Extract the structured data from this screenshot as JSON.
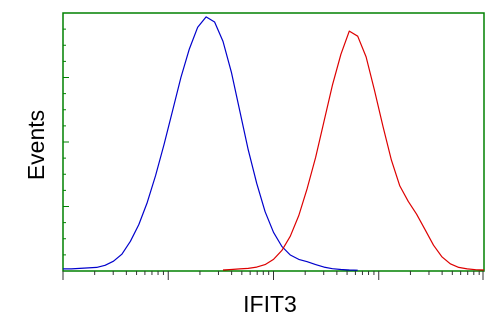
{
  "chart_data": {
    "type": "line",
    "title": "",
    "xlabel": "IFIT3",
    "ylabel": "Events",
    "x_scale": "log",
    "x_tick_labels": [],
    "y_tick_labels": [],
    "xlim": [
      0,
      1000
    ],
    "ylim": [
      0,
      1000
    ],
    "grid": false,
    "legend": "none",
    "frame_color": "#008000",
    "series": [
      {
        "color": "#0000CC",
        "x": [
          0,
          20,
          40,
          60,
          80,
          100,
          120,
          140,
          160,
          180,
          200,
          220,
          240,
          260,
          280,
          300,
          320,
          340,
          360,
          380,
          400,
          420,
          440,
          460,
          480,
          500,
          520,
          540,
          560,
          580,
          600,
          620,
          640,
          660,
          680,
          700
        ],
        "y": [
          8,
          8,
          10,
          12,
          14,
          22,
          38,
          65,
          115,
          180,
          265,
          370,
          490,
          620,
          750,
          860,
          945,
          985,
          965,
          890,
          770,
          620,
          470,
          340,
          230,
          150,
          95,
          62,
          45,
          36,
          25,
          15,
          9,
          6,
          4,
          3
        ]
      },
      {
        "color": "#DD0000",
        "x": [
          380,
          400,
          420,
          440,
          460,
          480,
          500,
          520,
          540,
          560,
          580,
          600,
          620,
          640,
          660,
          680,
          700,
          720,
          740,
          760,
          780,
          800,
          820,
          840,
          860,
          880,
          900,
          920,
          940,
          960,
          980,
          1000
        ],
        "y": [
          4,
          6,
          8,
          10,
          15,
          25,
          45,
          80,
          135,
          215,
          320,
          440,
          580,
          720,
          840,
          930,
          910,
          830,
          700,
          560,
          430,
          330,
          270,
          220,
          160,
          100,
          55,
          28,
          14,
          8,
          5,
          4
        ]
      }
    ]
  }
}
